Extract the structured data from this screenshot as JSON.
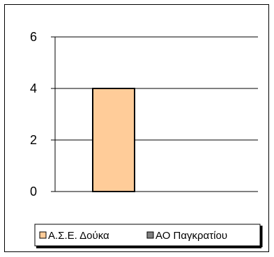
{
  "chart_data": {
    "type": "bar",
    "categories": [
      ""
    ],
    "series": [
      {
        "name": "Α.Σ.Ε. Δούκα",
        "values": [
          4
        ],
        "color": "#FFCC99"
      },
      {
        "name": "ΑΟ Παγκρατίου",
        "values": [
          0
        ],
        "color": "#808080"
      }
    ],
    "ylim": [
      0,
      6
    ],
    "yticks": [
      "0",
      "2",
      "4",
      "6"
    ],
    "grid": true,
    "legend_position": "bottom",
    "title": "",
    "xlabel": "",
    "ylabel": ""
  }
}
